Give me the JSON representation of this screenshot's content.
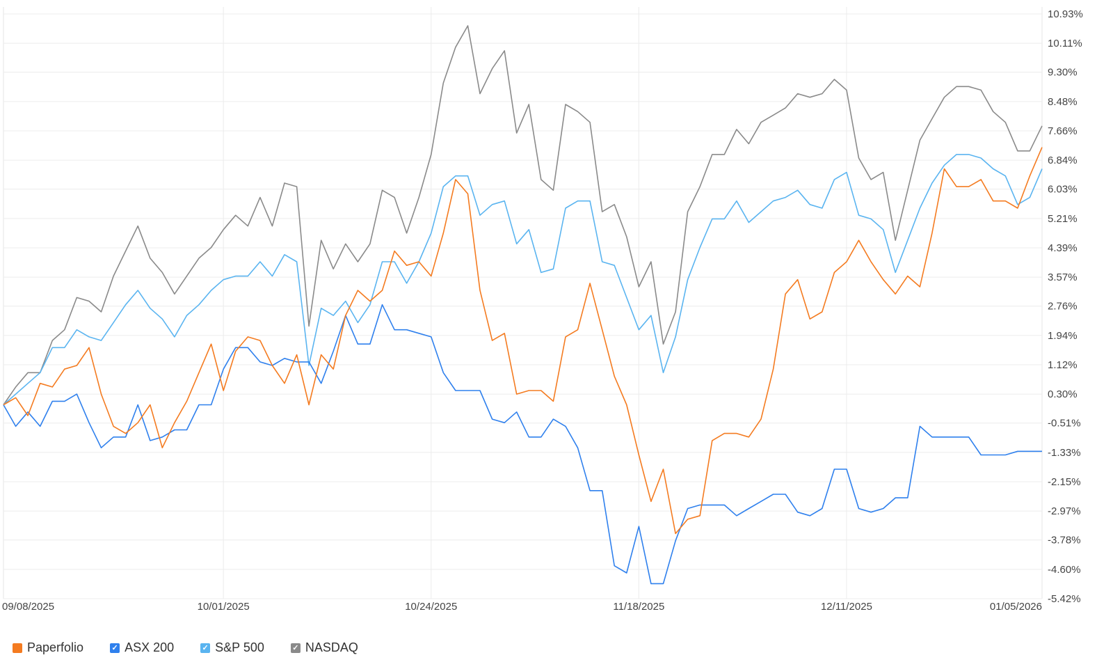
{
  "chart_data": {
    "type": "line",
    "title": "",
    "xlabel": "",
    "ylabel": "",
    "x_tick_labels": [
      "09/08/2025",
      "10/01/2025",
      "10/24/2025",
      "11/18/2025",
      "12/11/2025",
      "01/05/2026"
    ],
    "x_tick_indices": [
      0,
      18,
      35,
      52,
      69,
      85
    ],
    "y_ticks": [
      10.93,
      10.11,
      9.3,
      8.48,
      7.66,
      6.84,
      6.03,
      5.21,
      4.39,
      3.57,
      2.76,
      1.94,
      1.12,
      0.3,
      -0.51,
      -1.33,
      -2.15,
      -2.97,
      -3.78,
      -4.6,
      -5.42
    ],
    "y_tick_labels": [
      "10.93%",
      "10.11%",
      "9.30%",
      "8.48%",
      "7.66%",
      "6.84%",
      "6.03%",
      "5.21%",
      "4.39%",
      "3.57%",
      "2.76%",
      "1.94%",
      "1.12%",
      "0.30%",
      "-0.51%",
      "-1.33%",
      "-2.15%",
      "-2.97%",
      "-3.78%",
      "-4.60%",
      "-5.42%"
    ],
    "ylim": [
      -5.42,
      10.93
    ],
    "grid": true,
    "legend_position": "bottom-left",
    "series": [
      {
        "name": "Paperfolio",
        "color": "#f47b20",
        "values": [
          0.0,
          0.2,
          -0.3,
          0.6,
          0.5,
          1.0,
          1.1,
          1.6,
          0.3,
          -0.6,
          -0.8,
          -0.5,
          0.0,
          -1.2,
          -0.5,
          0.1,
          0.9,
          1.7,
          0.4,
          1.5,
          1.9,
          1.8,
          1.1,
          0.6,
          1.4,
          0.0,
          1.4,
          1.0,
          2.5,
          3.2,
          2.9,
          3.2,
          4.3,
          3.9,
          4.0,
          3.6,
          4.8,
          6.3,
          5.9,
          3.2,
          1.8,
          2.0,
          0.3,
          0.4,
          0.4,
          0.1,
          1.9,
          2.1,
          3.4,
          2.1,
          0.8,
          0.0,
          -1.4,
          -2.7,
          -1.8,
          -3.6,
          -3.2,
          -3.1,
          -1.0,
          -0.8,
          -0.8,
          -0.9,
          -0.4,
          1.0,
          3.1,
          3.5,
          2.4,
          2.6,
          3.7,
          4.0,
          4.6,
          4.0,
          3.5,
          3.1,
          3.6,
          3.3,
          4.8,
          6.6,
          6.1,
          6.1,
          6.3,
          5.7,
          5.7,
          5.5,
          6.4,
          7.2
        ]
      },
      {
        "name": "ASX 200",
        "color": "#2f80ed",
        "values": [
          0.0,
          -0.6,
          -0.2,
          -0.6,
          0.1,
          0.1,
          0.3,
          -0.5,
          -1.2,
          -0.9,
          -0.9,
          0.0,
          -1.0,
          -0.9,
          -0.7,
          -0.7,
          0.0,
          0.0,
          1.0,
          1.6,
          1.6,
          1.2,
          1.1,
          1.3,
          1.2,
          1.2,
          0.6,
          1.5,
          2.5,
          1.7,
          1.7,
          2.8,
          2.1,
          2.1,
          2.0,
          1.9,
          0.9,
          0.4,
          0.4,
          0.4,
          -0.4,
          -0.5,
          -0.2,
          -0.9,
          -0.9,
          -0.4,
          -0.6,
          -1.2,
          -2.4,
          -2.4,
          -4.5,
          -4.7,
          -3.4,
          -5.0,
          -5.0,
          -3.8,
          -2.9,
          -2.8,
          -2.8,
          -2.8,
          -3.1,
          -2.9,
          -2.7,
          -2.5,
          -2.5,
          -3.0,
          -3.1,
          -2.9,
          -1.8,
          -1.8,
          -2.9,
          -3.0,
          -2.9,
          -2.6,
          -2.6,
          -0.6,
          -0.9,
          -0.9,
          -0.9,
          -0.9,
          -1.4,
          -1.4,
          -1.4,
          -1.3,
          -1.3,
          -1.3
        ]
      },
      {
        "name": "S&P 500",
        "color": "#5ab4f0",
        "values": [
          0.0,
          0.3,
          0.6,
          0.9,
          1.6,
          1.6,
          2.1,
          1.9,
          1.8,
          2.3,
          2.8,
          3.2,
          2.7,
          2.4,
          1.9,
          2.5,
          2.8,
          3.2,
          3.5,
          3.6,
          3.6,
          4.0,
          3.6,
          4.2,
          4.0,
          1.1,
          2.7,
          2.5,
          2.9,
          2.3,
          2.8,
          4.0,
          4.0,
          3.4,
          4.0,
          4.8,
          6.1,
          6.4,
          6.4,
          5.3,
          5.6,
          5.7,
          4.5,
          4.9,
          3.7,
          3.8,
          5.5,
          5.7,
          5.7,
          4.0,
          3.9,
          3.0,
          2.1,
          2.5,
          0.9,
          1.9,
          3.5,
          4.4,
          5.2,
          5.2,
          5.7,
          5.1,
          5.4,
          5.7,
          5.8,
          6.0,
          5.6,
          5.5,
          6.3,
          6.5,
          5.3,
          5.2,
          4.9,
          3.7,
          4.6,
          5.5,
          6.2,
          6.7,
          7.0,
          7.0,
          6.9,
          6.6,
          6.4,
          5.6,
          5.8,
          6.6
        ]
      },
      {
        "name": "NASDAQ",
        "color": "#8a8a8a",
        "values": [
          0.0,
          0.5,
          0.9,
          0.9,
          1.8,
          2.1,
          3.0,
          2.9,
          2.6,
          3.6,
          4.3,
          5.0,
          4.1,
          3.7,
          3.1,
          3.6,
          4.1,
          4.4,
          4.9,
          5.3,
          5.0,
          5.8,
          5.0,
          6.2,
          6.1,
          2.2,
          4.6,
          3.8,
          4.5,
          4.0,
          4.5,
          6.0,
          5.8,
          4.8,
          5.8,
          7.0,
          9.0,
          10.0,
          10.6,
          8.7,
          9.4,
          9.9,
          7.6,
          8.4,
          6.3,
          6.0,
          8.4,
          8.2,
          7.9,
          5.4,
          5.6,
          4.7,
          3.3,
          4.0,
          1.7,
          2.6,
          5.4,
          6.1,
          7.0,
          7.0,
          7.7,
          7.3,
          7.9,
          8.1,
          8.3,
          8.7,
          8.6,
          8.7,
          9.1,
          8.8,
          6.9,
          6.3,
          6.5,
          4.6,
          6.0,
          7.4,
          8.0,
          8.6,
          8.9,
          8.9,
          8.8,
          8.2,
          7.9,
          7.1,
          7.1,
          7.8
        ]
      }
    ]
  },
  "legend": [
    {
      "label": "Paperfolio",
      "color": "#f47b20",
      "icon": "square-icon"
    },
    {
      "label": "ASX 200",
      "color": "#2f80ed",
      "icon": "checkbox-checked-icon"
    },
    {
      "label": "S&P 500",
      "color": "#5ab4f0",
      "icon": "checkbox-checked-icon"
    },
    {
      "label": "NASDAQ",
      "color": "#8a8a8a",
      "icon": "checkbox-checked-icon"
    }
  ]
}
